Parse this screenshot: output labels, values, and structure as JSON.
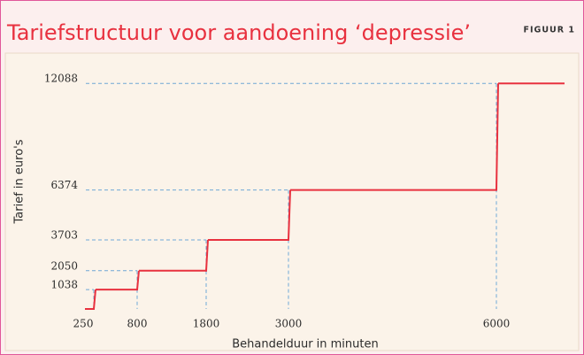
{
  "chart_data": {
    "type": "step",
    "title": "Tariefstructuur voor aandoening ‘depressie’",
    "figure_label": "FIGUUR 1",
    "x_label": "Behandelduur in minuten",
    "y_label": "Tarief in euro's",
    "categories": [
      "250",
      "800",
      "1800",
      "3000",
      "6000"
    ],
    "values": [
      1038,
      2050,
      3703,
      6374,
      12088
    ],
    "yticks": [
      1038,
      2050,
      3703,
      6374,
      12088
    ],
    "ylim": [
      0,
      13000
    ],
    "color": "#e8313f",
    "guide_color": "#6fa8d6"
  }
}
